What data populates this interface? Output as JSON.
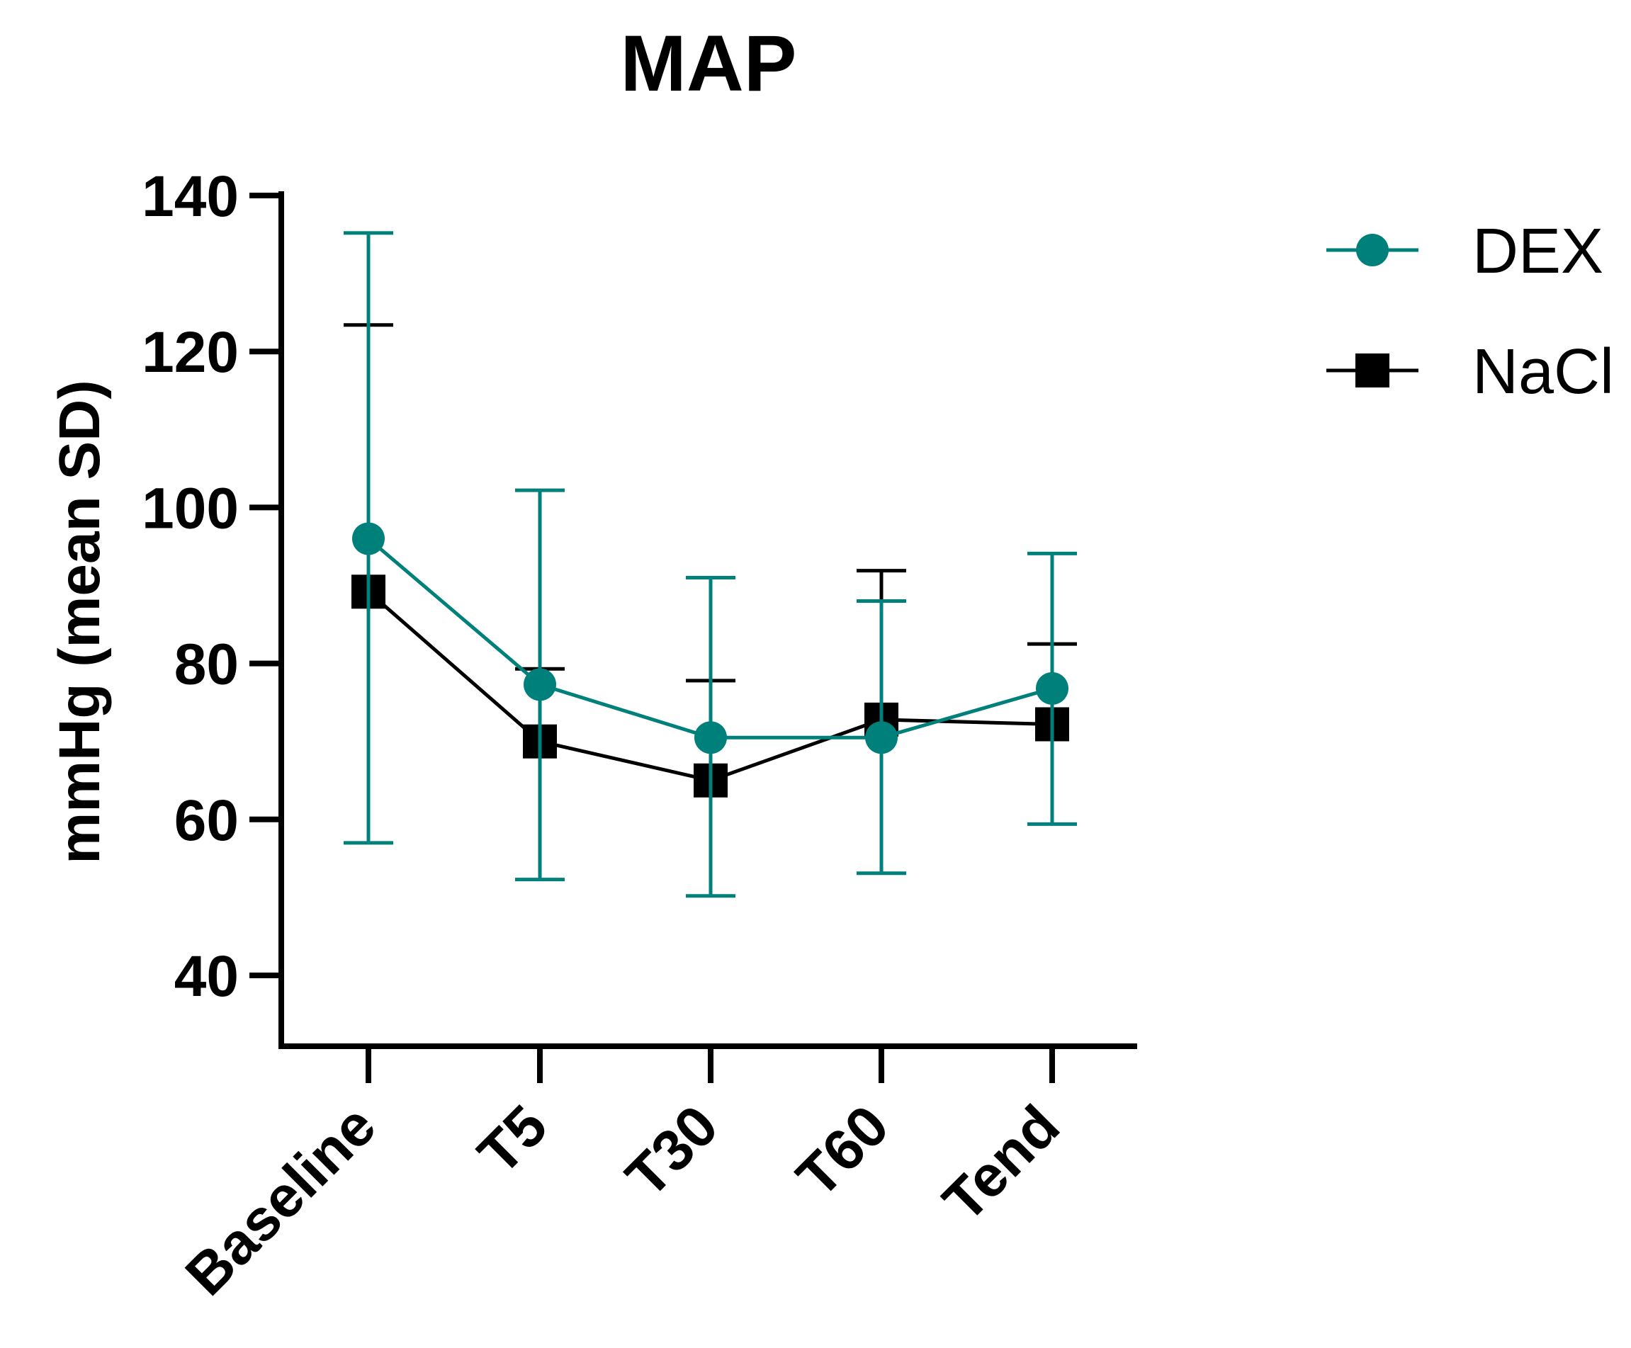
{
  "chart_data": {
    "type": "line",
    "title": "MAP",
    "xlabel": "",
    "ylabel": "mmHg (mean SD)",
    "categories": [
      "Baseline",
      "T5",
      "T30",
      "T60",
      "Tend"
    ],
    "ylim": [
      30,
      140
    ],
    "yticks": [
      40,
      60,
      80,
      100,
      120,
      140
    ],
    "grid": false,
    "legend_position": "top-right",
    "series": [
      {
        "name": "DEX",
        "color": "#00807A",
        "marker": "circle",
        "values": [
          96,
          77.3,
          70.5,
          70.5,
          76.8
        ],
        "err_low": [
          57,
          52.3,
          50.2,
          53.1,
          59.4
        ],
        "err_high": [
          135.2,
          102.2,
          91,
          88,
          94.1
        ]
      },
      {
        "name": "NaCl",
        "color": "#000000",
        "marker": "square",
        "values": [
          89.2,
          70,
          65,
          72.8,
          72.2
        ],
        "err_low": [
          null,
          null,
          null,
          null,
          null
        ],
        "err_high": [
          123.4,
          79.3,
          77.8,
          91.9,
          82.5
        ]
      }
    ]
  }
}
